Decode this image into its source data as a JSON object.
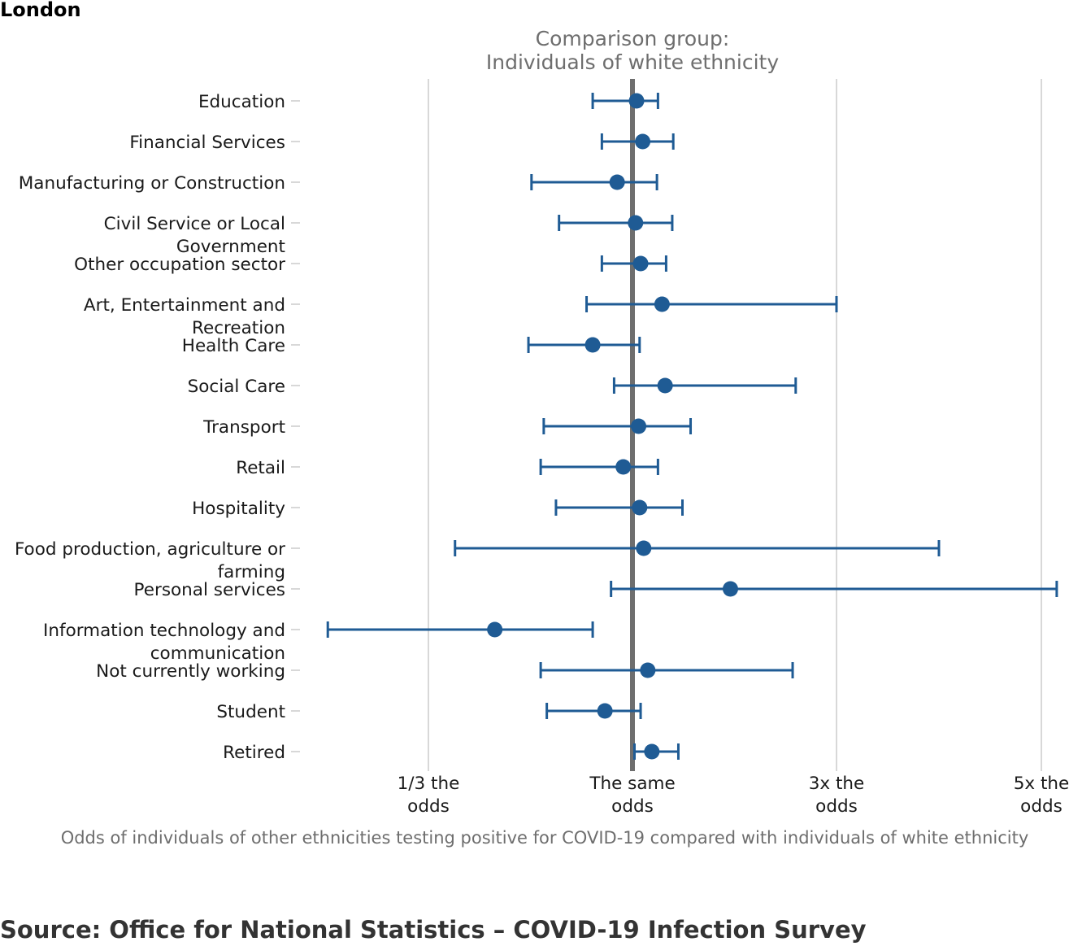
{
  "header": {
    "region": "London"
  },
  "source": "Source: Office for National Statistics – COVID-19 Infection Survey",
  "colors": {
    "marker": "#1f5b94",
    "reference_line": "#6e6e6e",
    "grid": "#c8c8c8",
    "muted_text": "#6e6e6e"
  },
  "chart_data": {
    "type": "scatter",
    "variant": "forest-plot",
    "title": "London",
    "reference": {
      "label_lines": [
        "Comparison group:",
        "Individuals of white ethnicity"
      ],
      "value": 1
    },
    "xlabel": "Odds of individuals of other ethnicities testing positive for COVID-19 compared with individuals of white ethnicity",
    "ylabel": "",
    "x_ticks": [
      {
        "value": 0.333,
        "lines": [
          "1/3 the",
          "odds"
        ]
      },
      {
        "value": 1,
        "lines": [
          "The same",
          "odds"
        ]
      },
      {
        "value": 3,
        "lines": [
          "3x the",
          "odds"
        ]
      },
      {
        "value": 5,
        "lines": [
          "5x the",
          "odds"
        ]
      }
    ],
    "grid": true,
    "categories": [
      {
        "lines": [
          "Education"
        ],
        "estimate": 1.04,
        "lower": 0.87,
        "upper": 1.25
      },
      {
        "lines": [
          "Financial Services"
        ],
        "estimate": 1.1,
        "lower": 0.9,
        "upper": 1.4
      },
      {
        "lines": [
          "Manufacturing or Construction"
        ],
        "estimate": 0.95,
        "lower": 0.67,
        "upper": 1.24
      },
      {
        "lines": [
          "Civil Service or Local",
          "Government"
        ],
        "estimate": 1.03,
        "lower": 0.76,
        "upper": 1.39
      },
      {
        "lines": [
          "Other occupation sector"
        ],
        "estimate": 1.08,
        "lower": 0.9,
        "upper": 1.33
      },
      {
        "lines": [
          "Art, Entertainment and",
          "Recreation"
        ],
        "estimate": 1.29,
        "lower": 0.85,
        "upper": 3.0
      },
      {
        "lines": [
          "Health Care"
        ],
        "estimate": 0.87,
        "lower": 0.66,
        "upper": 1.07
      },
      {
        "lines": [
          "Social Care"
        ],
        "estimate": 1.32,
        "lower": 0.94,
        "upper": 2.6
      },
      {
        "lines": [
          "Transport"
        ],
        "estimate": 1.06,
        "lower": 0.71,
        "upper": 1.57
      },
      {
        "lines": [
          "Retail"
        ],
        "estimate": 0.97,
        "lower": 0.7,
        "upper": 1.25
      },
      {
        "lines": [
          "Hospitality"
        ],
        "estimate": 1.07,
        "lower": 0.75,
        "upper": 1.49
      },
      {
        "lines": [
          "Food production, agriculture or",
          "farming"
        ],
        "estimate": 1.11,
        "lower": 0.42,
        "upper": 4.0
      },
      {
        "lines": [
          "Personal services"
        ],
        "estimate": 1.96,
        "lower": 0.93,
        "upper": 5.15
      },
      {
        "lines": [
          "Information technology and",
          "communication"
        ],
        "estimate": 0.55,
        "lower": 0.24,
        "upper": 0.87
      },
      {
        "lines": [
          "Not currently working"
        ],
        "estimate": 1.15,
        "lower": 0.7,
        "upper": 2.57
      },
      {
        "lines": [
          "Student"
        ],
        "estimate": 0.91,
        "lower": 0.72,
        "upper": 1.08
      },
      {
        "lines": [
          "Retired"
        ],
        "estimate": 1.19,
        "lower": 1.02,
        "upper": 1.45
      }
    ]
  }
}
